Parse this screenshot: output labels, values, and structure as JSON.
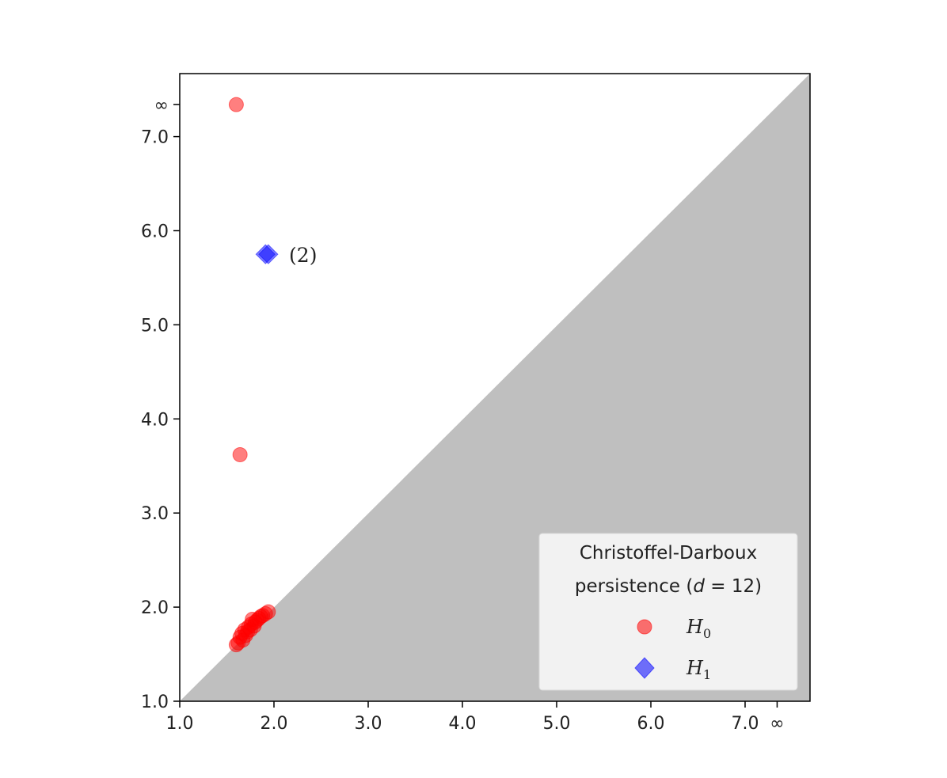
{
  "chart_data": {
    "type": "scatter",
    "title": "",
    "xlabel": "",
    "ylabel": "",
    "xlim": [
      1.0,
      7.4
    ],
    "ylim": [
      1.0,
      7.4
    ],
    "infinity_value": 7.34,
    "infinity_label": "∞",
    "x_ticks": [
      1.0,
      2.0,
      3.0,
      4.0,
      5.0,
      6.0,
      7.0
    ],
    "x_tick_labels": [
      "1.0",
      "2.0",
      "3.0",
      "4.0",
      "5.0",
      "6.0",
      "7.0"
    ],
    "y_ticks": [
      1.0,
      2.0,
      3.0,
      4.0,
      5.0,
      6.0,
      7.0
    ],
    "y_tick_labels": [
      "1.0",
      "2.0",
      "3.0",
      "4.0",
      "5.0",
      "6.0",
      "7.0"
    ],
    "grid": false,
    "diagonal_shaded": true,
    "shade_color": "#bfbfbf",
    "legend": {
      "placement": "bottom-right",
      "title_line1": "Christoffel-Darboux",
      "title_line2_prefix": "persistence (",
      "title_line2_var": "d",
      "title_line2_suffix": " = 12)"
    },
    "series": [
      {
        "name": "H",
        "subscript": "0",
        "marker": "circle",
        "color": "#ff0000",
        "points": [
          [
            1.6,
            7.34
          ],
          [
            1.64,
            3.62
          ],
          [
            1.6,
            1.6
          ],
          [
            1.62,
            1.62
          ],
          [
            1.64,
            1.68
          ],
          [
            1.66,
            1.72
          ],
          [
            1.67,
            1.65
          ],
          [
            1.69,
            1.76
          ],
          [
            1.7,
            1.7
          ],
          [
            1.72,
            1.74
          ],
          [
            1.73,
            1.79
          ],
          [
            1.75,
            1.76
          ],
          [
            1.76,
            1.82
          ],
          [
            1.77,
            1.87
          ],
          [
            1.79,
            1.8
          ],
          [
            1.8,
            1.84
          ],
          [
            1.82,
            1.86
          ],
          [
            1.84,
            1.88
          ],
          [
            1.86,
            1.9
          ],
          [
            1.88,
            1.91
          ],
          [
            1.91,
            1.93
          ],
          [
            1.94,
            1.95
          ]
        ]
      },
      {
        "name": "H",
        "subscript": "1",
        "marker": "diamond",
        "color": "#0000ff",
        "points": [
          [
            1.91,
            5.75
          ],
          [
            1.94,
            5.75
          ]
        ]
      }
    ],
    "annotations": [
      {
        "text": "(2)",
        "x": 2.16,
        "y": 5.75
      }
    ]
  }
}
